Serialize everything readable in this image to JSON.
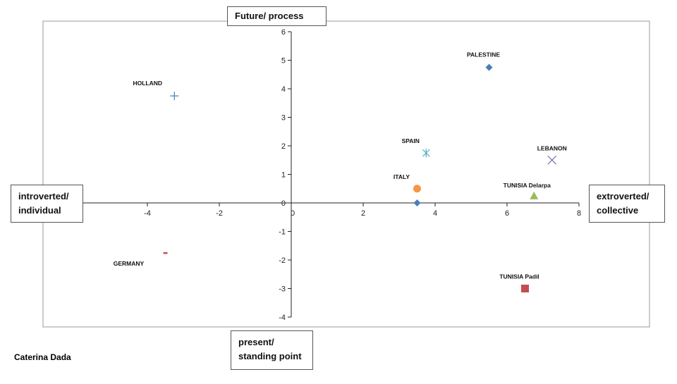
{
  "author": "Caterina Dada",
  "chart_data": {
    "type": "scatter",
    "xlim": [
      -6,
      8
    ],
    "ylim": [
      -4,
      6
    ],
    "x_ticks": [
      -4,
      -2,
      0,
      2,
      4,
      6,
      8
    ],
    "y_ticks": [
      -4,
      -3,
      -2,
      -1,
      0,
      1,
      2,
      3,
      4,
      5,
      6
    ],
    "grid": false,
    "axis_labels": {
      "top": "Future/ process",
      "bottom": "present/ standing point",
      "left": "introverted/ individual",
      "right": "extroverted/ collective"
    },
    "points": [
      {
        "label": "PALESTINE",
        "x": 5.5,
        "y": 4.75,
        "marker": "diamond",
        "color": "#4a7ebb"
      },
      {
        "label": "HOLLAND",
        "x": -3.25,
        "y": 3.75,
        "marker": "plus",
        "color": "#4a7ebb"
      },
      {
        "label": "SPAIN",
        "x": 3.75,
        "y": 1.75,
        "marker": "asterisk",
        "color": "#4bacc6"
      },
      {
        "label": "LEBANON",
        "x": 7.25,
        "y": 1.5,
        "marker": "x",
        "color": "#8064a2"
      },
      {
        "label": "ITALY",
        "x": 3.5,
        "y": 0.5,
        "marker": "circle",
        "color": "#f79646"
      },
      {
        "label": "",
        "x": 3.5,
        "y": 0,
        "marker": "diamond",
        "color": "#4a7ebb"
      },
      {
        "label": "TUNISIA Delarpa",
        "x": 6.75,
        "y": 0.25,
        "marker": "triangle",
        "color": "#9bbb59"
      },
      {
        "label": "GERMANY",
        "x": -3.5,
        "y": -1.75,
        "marker": "dash",
        "color": "#c0504d"
      },
      {
        "label": "TUNISIA Padil",
        "x": 6.5,
        "y": -3,
        "marker": "square",
        "color": "#c0504d"
      }
    ]
  }
}
